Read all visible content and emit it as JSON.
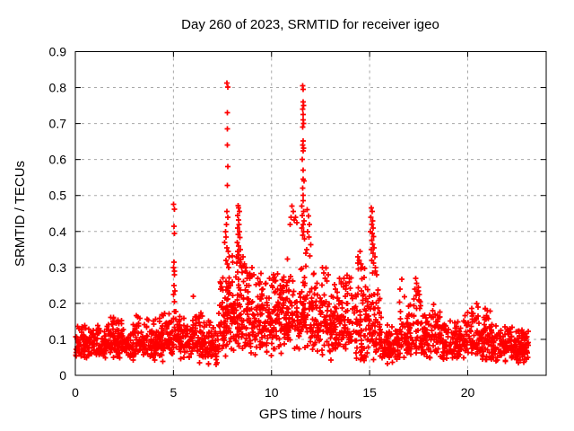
{
  "window": {
    "background": "#ffffff"
  },
  "chart_data": {
    "type": "scatter",
    "title": "Day 260 of 2023, SRMTID for receiver igeo",
    "xlabel": "GPS time / hours",
    "ylabel": "SRMTID / TECUs",
    "xlim": [
      0,
      24
    ],
    "ylim": [
      0,
      0.9
    ],
    "x_ticks": [
      0,
      5,
      10,
      15,
      20
    ],
    "y_ticks": [
      0,
      0.1,
      0.2,
      0.3,
      0.4,
      0.5,
      0.6,
      0.7,
      0.8,
      0.9
    ],
    "grid": true,
    "grid_style": "dashed",
    "legend": "none",
    "marker": "plus",
    "marker_color": "#ff0000",
    "grid_color": "#a8a8a8",
    "axis_color": "#000000",
    "seed": 20230260,
    "spike_points": [
      [
        5.0,
        0.475
      ],
      [
        5.04,
        0.462
      ],
      [
        5.02,
        0.415
      ],
      [
        5.06,
        0.395
      ],
      [
        5.03,
        0.315
      ],
      [
        5.0,
        0.3
      ],
      [
        5.05,
        0.29
      ],
      [
        5.04,
        0.28
      ],
      [
        5.02,
        0.25
      ],
      [
        5.07,
        0.235
      ],
      [
        5.0,
        0.225
      ],
      [
        5.05,
        0.205
      ],
      [
        6.02,
        0.22
      ],
      [
        7.73,
        0.813
      ],
      [
        7.76,
        0.802
      ],
      [
        7.74,
        0.73
      ],
      [
        7.75,
        0.685
      ],
      [
        7.74,
        0.64
      ],
      [
        7.76,
        0.58
      ],
      [
        7.75,
        0.528
      ],
      [
        7.72,
        0.455
      ],
      [
        7.78,
        0.44
      ],
      [
        7.7,
        0.42
      ],
      [
        7.65,
        0.4
      ],
      [
        7.68,
        0.385
      ],
      [
        7.62,
        0.37
      ],
      [
        7.72,
        0.355
      ],
      [
        7.8,
        0.345
      ],
      [
        7.85,
        0.33
      ],
      [
        7.67,
        0.32
      ],
      [
        7.75,
        0.31
      ],
      [
        7.82,
        0.3
      ],
      [
        8.3,
        0.472
      ],
      [
        8.33,
        0.465
      ],
      [
        8.28,
        0.445
      ],
      [
        8.36,
        0.455
      ],
      [
        8.31,
        0.432
      ],
      [
        8.34,
        0.42
      ],
      [
        8.27,
        0.41
      ],
      [
        8.36,
        0.4
      ],
      [
        8.3,
        0.392
      ],
      [
        8.39,
        0.383
      ],
      [
        8.25,
        0.37
      ],
      [
        8.33,
        0.36
      ],
      [
        8.41,
        0.35
      ],
      [
        8.28,
        0.344
      ],
      [
        8.35,
        0.334
      ],
      [
        8.3,
        0.325
      ],
      [
        8.38,
        0.315
      ],
      [
        8.43,
        0.305
      ],
      [
        8.2,
        0.33
      ],
      [
        8.22,
        0.312
      ],
      [
        8.47,
        0.3
      ],
      [
        8.55,
        0.33
      ],
      [
        8.62,
        0.31
      ],
      [
        8.7,
        0.3
      ],
      [
        8.76,
        0.285
      ],
      [
        8.9,
        0.27
      ],
      [
        9.0,
        0.3
      ],
      [
        9.1,
        0.28
      ],
      [
        9.3,
        0.27
      ],
      [
        8.66,
        0.29
      ],
      [
        8.85,
        0.25
      ],
      [
        9.2,
        0.252
      ],
      [
        9.42,
        0.26
      ],
      [
        9.55,
        0.24
      ],
      [
        9.7,
        0.255
      ],
      [
        9.9,
        0.27
      ],
      [
        10.0,
        0.25
      ],
      [
        10.1,
        0.28
      ],
      [
        10.17,
        0.262
      ],
      [
        10.3,
        0.24
      ],
      [
        10.4,
        0.225
      ],
      [
        10.95,
        0.42
      ],
      [
        11.0,
        0.44
      ],
      [
        11.05,
        0.47
      ],
      [
        11.1,
        0.455
      ],
      [
        11.15,
        0.432
      ],
      [
        11.22,
        0.44
      ],
      [
        11.3,
        0.425
      ],
      [
        11.58,
        0.805
      ],
      [
        11.62,
        0.795
      ],
      [
        11.6,
        0.76
      ],
      [
        11.63,
        0.75
      ],
      [
        11.58,
        0.74
      ],
      [
        11.61,
        0.725
      ],
      [
        11.6,
        0.71
      ],
      [
        11.64,
        0.7
      ],
      [
        11.59,
        0.69
      ],
      [
        11.62,
        0.652
      ],
      [
        11.58,
        0.64
      ],
      [
        11.63,
        0.632
      ],
      [
        11.6,
        0.624
      ],
      [
        11.57,
        0.6
      ],
      [
        11.62,
        0.57
      ],
      [
        11.6,
        0.545
      ],
      [
        11.65,
        0.54
      ],
      [
        11.58,
        0.52
      ],
      [
        11.62,
        0.5
      ],
      [
        11.6,
        0.485
      ],
      [
        11.55,
        0.47
      ],
      [
        11.63,
        0.455
      ],
      [
        11.57,
        0.445
      ],
      [
        11.66,
        0.43
      ],
      [
        11.6,
        0.42
      ],
      [
        11.54,
        0.41
      ],
      [
        11.64,
        0.4
      ],
      [
        11.58,
        0.39
      ],
      [
        11.68,
        0.38
      ],
      [
        11.82,
        0.46
      ],
      [
        11.88,
        0.443
      ],
      [
        11.94,
        0.42
      ],
      [
        11.84,
        0.4
      ],
      [
        11.9,
        0.385
      ],
      [
        12.0,
        0.363
      ],
      [
        11.8,
        0.35
      ],
      [
        11.75,
        0.34
      ],
      [
        11.96,
        0.332
      ],
      [
        12.6,
        0.3
      ],
      [
        12.66,
        0.285
      ],
      [
        12.72,
        0.27
      ],
      [
        12.77,
        0.298
      ],
      [
        12.82,
        0.262
      ],
      [
        13.2,
        0.252
      ],
      [
        13.26,
        0.24
      ],
      [
        13.7,
        0.27
      ],
      [
        13.8,
        0.25
      ],
      [
        13.86,
        0.278
      ],
      [
        13.96,
        0.26
      ],
      [
        14.02,
        0.242
      ],
      [
        14.4,
        0.33
      ],
      [
        14.46,
        0.32
      ],
      [
        14.52,
        0.345
      ],
      [
        14.57,
        0.31
      ],
      [
        14.62,
        0.3
      ],
      [
        15.08,
        0.465
      ],
      [
        15.12,
        0.455
      ],
      [
        15.07,
        0.44
      ],
      [
        15.15,
        0.43
      ],
      [
        15.1,
        0.42
      ],
      [
        15.18,
        0.41
      ],
      [
        15.05,
        0.4
      ],
      [
        15.13,
        0.394
      ],
      [
        15.2,
        0.386
      ],
      [
        15.1,
        0.376
      ],
      [
        15.16,
        0.365
      ],
      [
        15.22,
        0.355
      ],
      [
        15.08,
        0.35
      ],
      [
        15.18,
        0.34
      ],
      [
        15.26,
        0.33
      ],
      [
        15.1,
        0.32
      ],
      [
        15.2,
        0.312
      ],
      [
        15.3,
        0.3
      ],
      [
        15.28,
        0.29
      ],
      [
        15.15,
        0.285
      ],
      [
        15.35,
        0.28
      ],
      [
        17.34,
        0.27
      ],
      [
        17.4,
        0.256
      ],
      [
        17.3,
        0.24
      ],
      [
        17.45,
        0.232
      ],
      [
        17.38,
        0.222
      ],
      [
        17.5,
        0.21
      ],
      [
        20.45,
        0.2
      ],
      [
        20.52,
        0.19
      ],
      [
        20.9,
        0.186
      ],
      [
        21.0,
        0.18
      ],
      [
        21.15,
        0.178
      ]
    ],
    "noise_bands": [
      {
        "x0": 0.0,
        "x1": 0.5,
        "n": 50,
        "ymin": 0.035,
        "ymax": 0.15,
        "mode": 0.09
      },
      {
        "x0": 0.5,
        "x1": 1.5,
        "n": 90,
        "ymin": 0.04,
        "ymax": 0.145,
        "mode": 0.085
      },
      {
        "x0": 1.5,
        "x1": 2.2,
        "n": 70,
        "ymin": 0.04,
        "ymax": 0.19,
        "mode": 0.1
      },
      {
        "x0": 2.2,
        "x1": 3.0,
        "n": 75,
        "ymin": 0.035,
        "ymax": 0.155,
        "mode": 0.085
      },
      {
        "x0": 3.0,
        "x1": 4.2,
        "n": 110,
        "ymin": 0.04,
        "ymax": 0.175,
        "mode": 0.09
      },
      {
        "x0": 4.2,
        "x1": 5.0,
        "n": 80,
        "ymin": 0.035,
        "ymax": 0.19,
        "mode": 0.1
      },
      {
        "x0": 5.0,
        "x1": 5.6,
        "n": 60,
        "ymin": 0.04,
        "ymax": 0.21,
        "mode": 0.11
      },
      {
        "x0": 5.6,
        "x1": 6.6,
        "n": 90,
        "ymin": 0.03,
        "ymax": 0.19,
        "mode": 0.095
      },
      {
        "x0": 6.6,
        "x1": 7.3,
        "n": 65,
        "ymin": 0.015,
        "ymax": 0.16,
        "mode": 0.08
      },
      {
        "x0": 7.3,
        "x1": 7.9,
        "n": 70,
        "ymin": 0.05,
        "ymax": 0.3,
        "mode": 0.14
      },
      {
        "x0": 7.9,
        "x1": 8.6,
        "n": 80,
        "ymin": 0.055,
        "ymax": 0.35,
        "mode": 0.16
      },
      {
        "x0": 8.6,
        "x1": 9.5,
        "n": 90,
        "ymin": 0.05,
        "ymax": 0.32,
        "mode": 0.15
      },
      {
        "x0": 9.5,
        "x1": 10.5,
        "n": 100,
        "ymin": 0.05,
        "ymax": 0.3,
        "mode": 0.15
      },
      {
        "x0": 10.5,
        "x1": 11.3,
        "n": 85,
        "ymin": 0.06,
        "ymax": 0.33,
        "mode": 0.16
      },
      {
        "x0": 11.3,
        "x1": 12.2,
        "n": 90,
        "ymin": 0.05,
        "ymax": 0.38,
        "mode": 0.17
      },
      {
        "x0": 12.2,
        "x1": 13.2,
        "n": 95,
        "ymin": 0.03,
        "ymax": 0.3,
        "mode": 0.14
      },
      {
        "x0": 13.2,
        "x1": 14.2,
        "n": 95,
        "ymin": 0.05,
        "ymax": 0.3,
        "mode": 0.14
      },
      {
        "x0": 14.2,
        "x1": 15.0,
        "n": 80,
        "ymin": 0.035,
        "ymax": 0.33,
        "mode": 0.13
      },
      {
        "x0": 15.0,
        "x1": 15.6,
        "n": 60,
        "ymin": 0.04,
        "ymax": 0.3,
        "mode": 0.13
      },
      {
        "x0": 15.6,
        "x1": 16.5,
        "n": 80,
        "ymin": 0.025,
        "ymax": 0.16,
        "mode": 0.08
      },
      {
        "x0": 16.5,
        "x1": 17.6,
        "n": 95,
        "ymin": 0.04,
        "ymax": 0.27,
        "mode": 0.11
      },
      {
        "x0": 17.6,
        "x1": 18.6,
        "n": 90,
        "ymin": 0.04,
        "ymax": 0.2,
        "mode": 0.1
      },
      {
        "x0": 18.6,
        "x1": 19.8,
        "n": 100,
        "ymin": 0.03,
        "ymax": 0.17,
        "mode": 0.09
      },
      {
        "x0": 19.8,
        "x1": 21.2,
        "n": 120,
        "ymin": 0.04,
        "ymax": 0.2,
        "mode": 0.1
      },
      {
        "x0": 21.2,
        "x1": 22.3,
        "n": 110,
        "ymin": 0.03,
        "ymax": 0.15,
        "mode": 0.085
      },
      {
        "x0": 22.3,
        "x1": 23.1,
        "n": 90,
        "ymin": 0.03,
        "ymax": 0.135,
        "mode": 0.08
      }
    ]
  }
}
